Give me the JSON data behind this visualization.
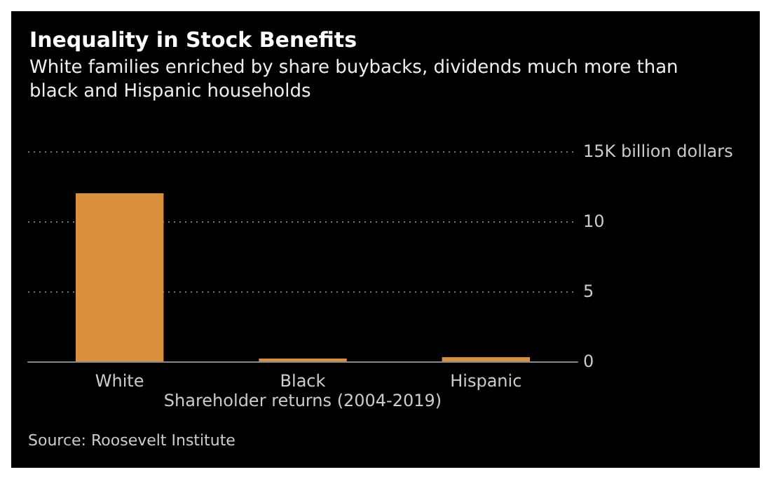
{
  "chart_data": {
    "type": "bar",
    "title": "Inequality in Stock Benefits",
    "subtitle": "White families enriched by share buybacks, dividends much more than\nblack and Hispanic households",
    "xlabel": "Shareholder returns (2004-2019)",
    "categories": [
      "White",
      "Black",
      "Hispanic"
    ],
    "values": [
      12,
      0.2,
      0.3
    ],
    "color": "#d9903d",
    "ylim": [
      0,
      15
    ],
    "yticks": [
      0,
      5,
      10,
      {
        "value": 15,
        "label": "15K billion dollars"
      }
    ],
    "grid": "y",
    "annotations": [
      "Source: Roosevelt Institute"
    ]
  }
}
